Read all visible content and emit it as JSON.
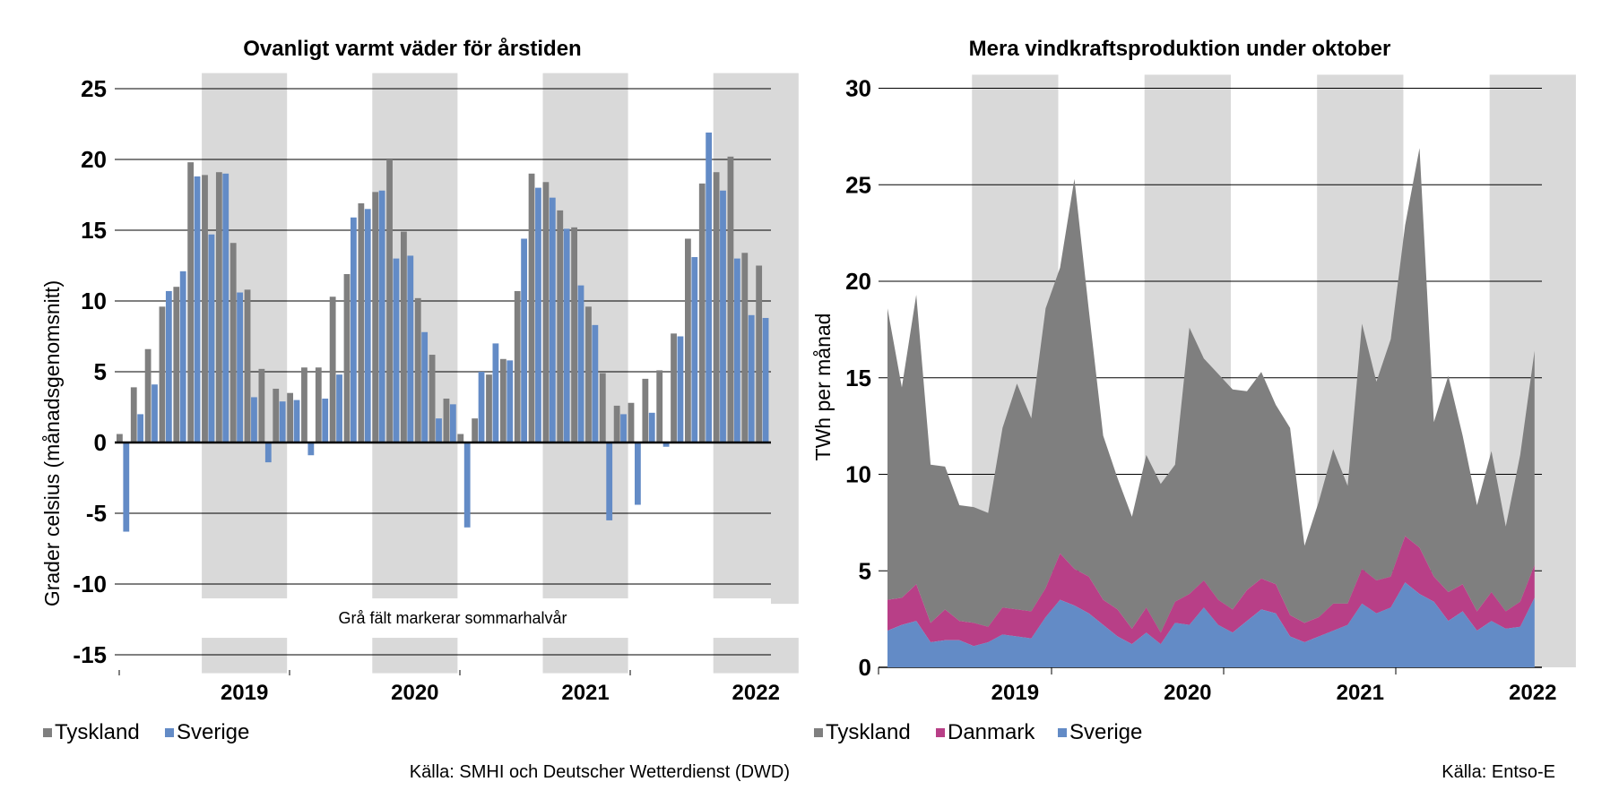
{
  "chart_data": [
    {
      "type": "bar",
      "title": "Ovanligt varmt väder för årstiden",
      "ylabel": "Grader celsius (månadsgenomsnitt)",
      "ylim": [
        -16,
        26
      ],
      "yticks": [
        25,
        20,
        15,
        10,
        5,
        0,
        -5,
        -10,
        -15
      ],
      "x_tick_labels": [
        "2019",
        "2020",
        "2021",
        "2022"
      ],
      "shading_note": "Grå fält markerar sommarhalvår",
      "source": "Källa: SMHI och Deutscher Wetterdienst (DWD)",
      "grid": true,
      "legend_position": "bottom-left",
      "colors": {
        "Tyskland": "#7f7f7f",
        "Sverige": "#638bc6",
        "shade": "#d9d9d9"
      },
      "months": [
        "2018-10",
        "2018-11",
        "2018-12",
        "2019-01",
        "2019-02",
        "2019-03",
        "2019-04",
        "2019-05",
        "2019-06",
        "2019-07",
        "2019-08",
        "2019-09",
        "2019-10",
        "2019-11",
        "2019-12",
        "2020-01",
        "2020-02",
        "2020-03",
        "2020-04",
        "2020-05",
        "2020-06",
        "2020-07",
        "2020-08",
        "2020-09",
        "2020-10",
        "2020-11",
        "2020-12",
        "2021-01",
        "2021-02",
        "2021-03",
        "2021-04",
        "2021-05",
        "2021-06",
        "2021-07",
        "2021-08",
        "2021-09",
        "2021-10",
        "2021-11",
        "2021-12",
        "2022-01",
        "2022-02",
        "2022-03",
        "2022-04",
        "2022-05",
        "2022-06",
        "2022-07",
        "2022-08",
        "2022-09",
        "2022-10"
      ],
      "series": [
        {
          "name": "Tyskland",
          "values": [
            0.6,
            3.9,
            6.6,
            9.6,
            11.0,
            19.8,
            18.9,
            19.1,
            14.1,
            10.8,
            5.2,
            3.8,
            3.5,
            5.3,
            5.3,
            10.3,
            11.9,
            16.9,
            17.7,
            20.0,
            14.9,
            10.2,
            6.2,
            3.1,
            0.6,
            1.7,
            4.8,
            5.9,
            10.7,
            19.0,
            18.4,
            16.4,
            15.2,
            9.6,
            4.9,
            2.6,
            2.8,
            4.5,
            5.1,
            7.7,
            14.4,
            18.3,
            19.1,
            20.2,
            13.4,
            12.5,
            0.0,
            0.0,
            0.0
          ]
        },
        {
          "name": "Sverige",
          "values": [
            -6.3,
            2.0,
            4.1,
            10.7,
            12.1,
            18.8,
            14.7,
            19.0,
            10.6,
            3.2,
            -1.4,
            2.9,
            3.0,
            -0.9,
            3.1,
            4.8,
            15.9,
            16.5,
            17.8,
            13.0,
            13.2,
            7.8,
            1.7,
            2.7,
            -6.0,
            5.0,
            7.0,
            5.8,
            14.4,
            18.0,
            17.3,
            15.1,
            11.1,
            8.3,
            -5.5,
            2.0,
            -4.4,
            2.1,
            -0.3,
            7.5,
            13.1,
            21.9,
            17.8,
            13.0,
            9.0,
            8.8,
            0.0,
            0.0,
            0.0
          ]
        }
      ]
    },
    {
      "type": "area",
      "stacked": true,
      "title": "Mera vindkraftsproduktion under oktober",
      "ylabel": "TWh per månad",
      "ylim": [
        0,
        30
      ],
      "yticks": [
        30,
        25,
        20,
        15,
        10,
        5,
        0
      ],
      "x_tick_labels": [
        "2019",
        "2020",
        "2021",
        "2022"
      ],
      "source": "Källa: Entso-E",
      "grid": true,
      "legend_position": "bottom-left",
      "colors": {
        "Tyskland": "#7f7f7f",
        "Danmark": "#b83f87",
        "Sverige": "#638bc6",
        "shade": "#d9d9d9"
      },
      "months": [
        "2018-10",
        "2018-11",
        "2018-12",
        "2019-01",
        "2019-02",
        "2019-03",
        "2019-04",
        "2019-05",
        "2019-06",
        "2019-07",
        "2019-08",
        "2019-09",
        "2019-10",
        "2019-11",
        "2019-12",
        "2020-01",
        "2020-02",
        "2020-03",
        "2020-04",
        "2020-05",
        "2020-06",
        "2020-07",
        "2020-08",
        "2020-09",
        "2020-10",
        "2020-11",
        "2020-12",
        "2021-01",
        "2021-02",
        "2021-03",
        "2021-04",
        "2021-05",
        "2021-06",
        "2021-07",
        "2021-08",
        "2021-09",
        "2021-10",
        "2021-11",
        "2021-12",
        "2022-01",
        "2022-02",
        "2022-03",
        "2022-04",
        "2022-05",
        "2022-06",
        "2022-07",
        "2022-08",
        "2022-09",
        "2022-10"
      ],
      "totals": [
        18.6,
        14.5,
        19.3,
        10.5,
        10.4,
        8.4,
        8.3,
        8.0,
        12.4,
        14.7,
        12.9,
        18.6,
        20.7,
        25.3,
        18.5,
        12.0,
        9.8,
        7.8,
        11.0,
        9.5,
        10.5,
        17.6,
        16.0,
        15.2,
        14.4,
        14.3,
        15.3,
        13.6,
        12.4,
        6.3,
        8.6,
        11.3,
        9.4,
        17.8,
        14.8,
        17.0,
        22.9,
        26.9,
        12.7,
        15.1,
        12.0,
        8.4,
        11.2,
        7.3,
        11.0,
        16.4,
        0,
        0,
        0
      ],
      "series": [
        {
          "name": "Sverige",
          "values": [
            1.9,
            2.2,
            2.4,
            1.3,
            1.4,
            1.4,
            1.1,
            1.3,
            1.7,
            1.6,
            1.5,
            2.6,
            3.5,
            3.2,
            2.8,
            2.2,
            1.6,
            1.2,
            1.8,
            1.2,
            2.3,
            2.2,
            3.1,
            2.2,
            1.8,
            2.4,
            3.0,
            2.8,
            1.6,
            1.3,
            1.6,
            1.9,
            2.2,
            3.3,
            2.8,
            3.1,
            4.4,
            3.8,
            3.4,
            2.4,
            2.9,
            1.9,
            2.4,
            2.0,
            2.1,
            3.6,
            0,
            0,
            0
          ]
        },
        {
          "name": "Danmark",
          "values": [
            1.6,
            1.4,
            1.9,
            1.0,
            1.6,
            1.0,
            1.2,
            0.8,
            1.4,
            1.4,
            1.4,
            1.5,
            2.4,
            1.9,
            1.9,
            1.3,
            1.4,
            0.8,
            1.3,
            0.6,
            1.1,
            1.6,
            1.4,
            1.3,
            1.2,
            1.6,
            1.6,
            1.5,
            1.1,
            1.0,
            1.0,
            1.4,
            1.1,
            1.8,
            1.7,
            1.6,
            2.4,
            2.4,
            1.3,
            1.5,
            1.4,
            1.0,
            1.5,
            0.9,
            1.3,
            1.7,
            0,
            0,
            0
          ]
        },
        {
          "name": "Tyskland",
          "values": [
            15.1,
            10.9,
            15.0,
            8.2,
            7.4,
            6.0,
            6.0,
            5.9,
            9.3,
            11.7,
            10.0,
            14.5,
            14.8,
            20.2,
            13.8,
            8.5,
            6.8,
            5.8,
            7.9,
            7.7,
            7.1,
            13.8,
            11.5,
            11.7,
            11.4,
            10.3,
            10.7,
            9.3,
            9.7,
            4.0,
            6.0,
            8.0,
            6.1,
            12.7,
            10.3,
            12.3,
            16.1,
            20.7,
            8.0,
            11.2,
            7.7,
            5.5,
            7.3,
            4.4,
            7.6,
            11.1,
            0,
            0,
            0
          ]
        }
      ]
    }
  ],
  "legend_left": {
    "items": [
      {
        "label": "Tyskland",
        "color": "#7f7f7f"
      },
      {
        "label": "Sverige",
        "color": "#638bc6"
      }
    ]
  },
  "legend_right": {
    "items": [
      {
        "label": "Tyskland",
        "color": "#7f7f7f"
      },
      {
        "label": "Danmark",
        "color": "#b83f87"
      },
      {
        "label": "Sverige",
        "color": "#638bc6"
      }
    ]
  }
}
